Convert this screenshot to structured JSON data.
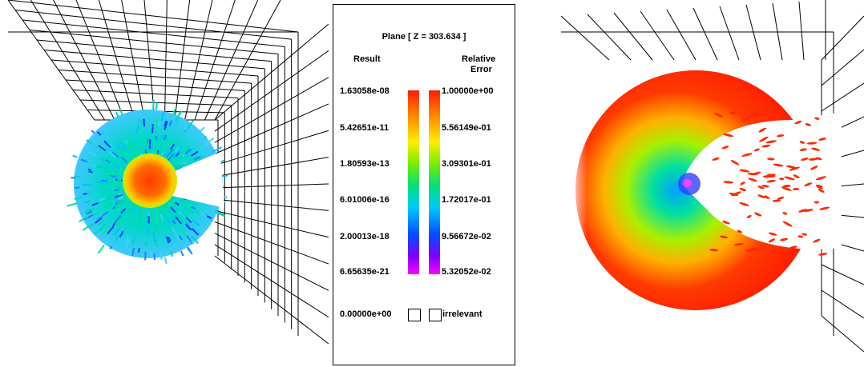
{
  "legend": {
    "title": "Plane [ Z = 303.634 ]",
    "left_heading": "Result",
    "right_heading_line1": "Relative",
    "right_heading_line2": "Error",
    "result_ticks": [
      "1.63058e-08",
      "5.42651e-11",
      "1.80593e-13",
      "6.01006e-16",
      "2.00013e-18",
      "6.65635e-21"
    ],
    "error_ticks": [
      "1.00000e+00",
      "5.56149e-01",
      "3.09301e-01",
      "1.72017e-01",
      "9.56672e-02",
      "5.32052e-02"
    ],
    "zero_label": "0.00000e+00",
    "irrelevant_label": "irrelevant"
  },
  "colors": {
    "colormap": [
      "#ff1e00",
      "#ff7a00",
      "#ffee00",
      "#77ee00",
      "#00e07a",
      "#00c8ff",
      "#0050ff",
      "#7a00ff",
      "#ff00ff"
    ],
    "grid": "#000000"
  }
}
